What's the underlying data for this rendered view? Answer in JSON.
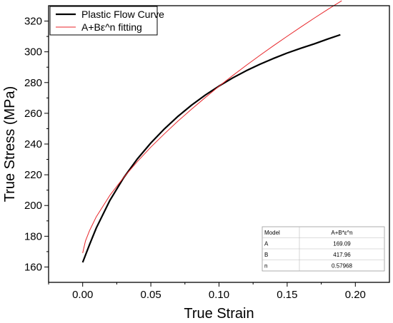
{
  "chart_data": {
    "type": "line",
    "xlabel": "True Strain",
    "ylabel": "True Stress (MPa)",
    "xlim": [
      -0.025,
      0.225
    ],
    "ylim": [
      150,
      330
    ],
    "x_ticks": [
      0.0,
      0.05,
      0.1,
      0.15,
      0.2
    ],
    "x_tick_labels": [
      "0.00",
      "0.05",
      "0.10",
      "0.15",
      "0.20"
    ],
    "y_ticks": [
      160,
      180,
      200,
      220,
      240,
      260,
      280,
      300,
      320
    ],
    "y_tick_labels": [
      "160",
      "180",
      "200",
      "220",
      "240",
      "260",
      "280",
      "300",
      "320"
    ],
    "grid": false,
    "legend_position": "top-left",
    "series": [
      {
        "name": "Plastic Flow Curve",
        "color": "#000000",
        "x": [
          0.0,
          0.005,
          0.01,
          0.02,
          0.03,
          0.04,
          0.05,
          0.06,
          0.07,
          0.08,
          0.09,
          0.1,
          0.11,
          0.12,
          0.13,
          0.14,
          0.15,
          0.16,
          0.17,
          0.18,
          0.189
        ],
        "y": [
          163,
          174.5,
          185.4,
          203.4,
          218.0,
          230.2,
          240.7,
          249.9,
          258.1,
          265.4,
          271.9,
          277.7,
          283.0,
          287.7,
          291.9,
          295.7,
          299.2,
          302.3,
          305.2,
          308.4,
          311.1
        ]
      },
      {
        "name": "A+Bε^n fitting",
        "color": "#e8262a",
        "x": [
          0.0,
          0.002,
          0.005,
          0.01,
          0.02,
          0.03,
          0.04,
          0.05,
          0.06,
          0.07,
          0.08,
          0.09,
          0.1,
          0.11,
          0.12,
          0.13,
          0.14,
          0.15,
          0.16,
          0.17,
          0.18,
          0.19
        ],
        "y": [
          169.1,
          176.8,
          183.6,
          192.7,
          206.7,
          218.2,
          228.5,
          238.0,
          246.7,
          255.0,
          262.8,
          270.3,
          277.6,
          284.5,
          291.2,
          297.7,
          304.0,
          310.1,
          316.1,
          322.0,
          327.7,
          333.2
        ]
      }
    ],
    "fit_table": {
      "headers": [
        "Model",
        "A+B*ε^n"
      ],
      "rows": [
        [
          "A",
          "169.09"
        ],
        [
          "B",
          "417.96"
        ],
        [
          "n",
          "0.57968"
        ]
      ]
    }
  }
}
